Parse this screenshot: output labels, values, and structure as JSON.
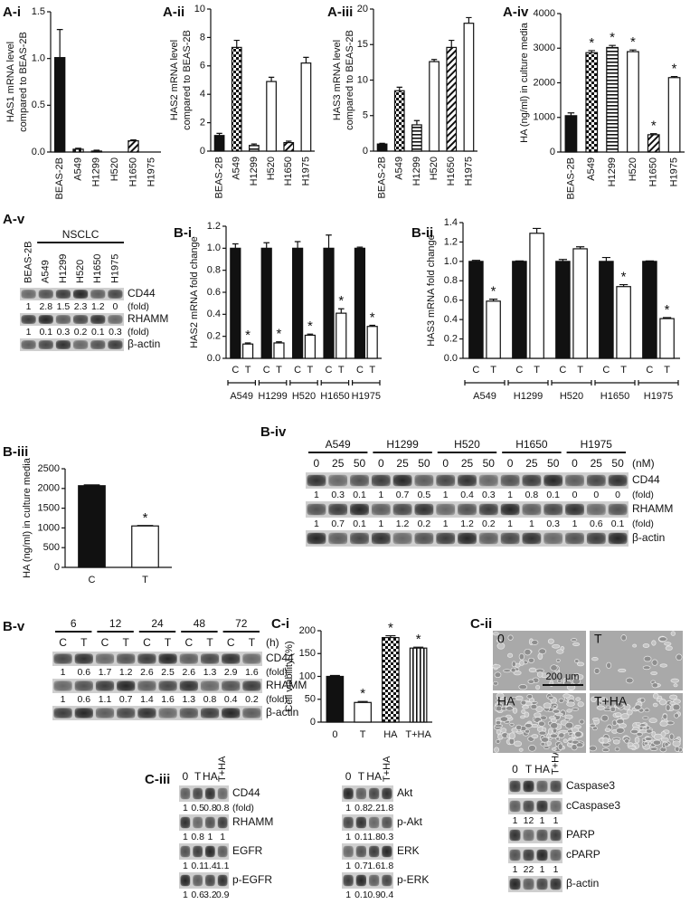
{
  "chart_data": [
    {
      "type": "bar",
      "panel": "A-i",
      "y_label": [
        "HAS1 mRNA level",
        "compared to BEAS-2B"
      ],
      "categories": [
        "BEAS-2B",
        "A549",
        "H1299",
        "H520",
        "H1650",
        "H1975"
      ],
      "values": [
        1.01,
        0.03,
        0.01,
        0,
        0.12,
        0
      ],
      "errors": [
        0.3,
        0.01,
        0.01,
        0,
        0.01,
        0
      ],
      "fills": [
        "black",
        "checker",
        "hstripe",
        "white",
        "diag",
        "white"
      ],
      "ylim": [
        0,
        1.5
      ],
      "yticks": [
        {
          "value": 0,
          "label": "0.0"
        },
        {
          "value": 0.5,
          "label": "0.5"
        },
        {
          "value": 1,
          "label": "1.0"
        },
        {
          "value": 1.5,
          "label": "1.5"
        }
      ]
    },
    {
      "type": "bar",
      "panel": "A-ii",
      "y_label": [
        "HAS2 mRNA level",
        "compared to BEAS-2B"
      ],
      "categories": [
        "BEAS-2B",
        "A549",
        "H1299",
        "H520",
        "H1650",
        "H1975"
      ],
      "values": [
        1.1,
        7.3,
        0.4,
        4.9,
        0.6,
        6.2
      ],
      "errors": [
        0.15,
        0.5,
        0.1,
        0.3,
        0.1,
        0.4
      ],
      "fills": [
        "black",
        "checker",
        "hstripe",
        "white",
        "diag",
        "white"
      ],
      "ylim": [
        0,
        10
      ],
      "yticks": [
        0,
        2,
        4,
        6,
        8,
        10
      ]
    },
    {
      "type": "bar",
      "panel": "A-iii",
      "y_label": [
        "HAS3 mRNA level",
        "compared to BEAS-2B"
      ],
      "categories": [
        "BEAS-2B",
        "A549",
        "H1299",
        "H520",
        "H1650",
        "H1975"
      ],
      "values": [
        1,
        8.5,
        3.7,
        12.6,
        14.6,
        18
      ],
      "errors": [
        0.1,
        0.5,
        0.6,
        0.3,
        1,
        0.8
      ],
      "fills": [
        "black",
        "checker",
        "hstripe",
        "white",
        "diag",
        "white"
      ],
      "ylim": [
        0,
        20
      ],
      "yticks": [
        0,
        5,
        10,
        15,
        20
      ]
    },
    {
      "type": "bar",
      "panel": "A-iv",
      "y_label": [
        "HA (ng/ml) in culture media"
      ],
      "categories": [
        "BEAS-2B",
        "A549",
        "H1299",
        "H520",
        "H1650",
        "H1975"
      ],
      "values": [
        1050,
        2870,
        3020,
        2900,
        500,
        2150
      ],
      "errors": [
        80,
        60,
        60,
        50,
        30,
        30
      ],
      "significance": [
        null,
        "*",
        "*",
        "*",
        "*",
        "*"
      ],
      "fills": [
        "black",
        "checker",
        "hstripe",
        "white",
        "diag",
        "white"
      ],
      "ylim": [
        0,
        4000
      ],
      "yticks": [
        0,
        1000,
        2000,
        3000,
        4000
      ]
    },
    {
      "type": "grouped_bar",
      "panel": "B-i",
      "y_label": [
        "HAS2 mRNA fold change"
      ],
      "categories": [
        "A549",
        "H1299",
        "H520",
        "H1650",
        "H1975"
      ],
      "series": [
        {
          "name": "C",
          "fill": "black",
          "values": [
            1.0,
            1.0,
            1.0,
            1.0,
            1.0
          ],
          "errors": [
            0.04,
            0.05,
            0.06,
            0.12,
            0.01
          ]
        },
        {
          "name": "T",
          "fill": "white",
          "values": [
            0.13,
            0.14,
            0.21,
            0.41,
            0.29
          ],
          "errors": [
            0.01,
            0.01,
            0.01,
            0.04,
            0.01
          ],
          "significance": [
            "*",
            "*",
            "*",
            "*",
            "*"
          ]
        }
      ],
      "ylim": [
        0,
        1.2
      ],
      "yticks": [
        {
          "value": 0,
          "label": "0.0"
        },
        {
          "value": 0.2,
          "label": "0.2"
        },
        {
          "value": 0.4,
          "label": "0.4"
        },
        {
          "value": 0.6,
          "label": "0.6"
        },
        {
          "value": 0.8,
          "label": "0.8"
        },
        {
          "value": 1,
          "label": "1.0"
        },
        {
          "value": 1.2,
          "label": "1.2"
        }
      ]
    },
    {
      "type": "grouped_bar",
      "panel": "B-ii",
      "y_label": [
        "HAS3 mRNA fold change"
      ],
      "categories": [
        "A549",
        "H1299",
        "H520",
        "H1650",
        "H1975"
      ],
      "series": [
        {
          "name": "C",
          "fill": "black",
          "values": [
            1.0,
            1.0,
            1.0,
            1.0,
            1.0
          ],
          "errors": [
            0.01,
            0.005,
            0.02,
            0.04,
            0.005
          ]
        },
        {
          "name": "T",
          "fill": "white",
          "values": [
            0.59,
            1.29,
            1.13,
            0.74,
            0.41
          ],
          "errors": [
            0.02,
            0.05,
            0.02,
            0.02,
            0.01
          ],
          "significance": [
            "*",
            null,
            null,
            "*",
            "*"
          ]
        }
      ],
      "ylim": [
        0,
        1.4
      ],
      "yticks": [
        {
          "value": 0,
          "label": "0.0"
        },
        {
          "value": 0.2,
          "label": "0.2"
        },
        {
          "value": 0.4,
          "label": "0.4"
        },
        {
          "value": 0.6,
          "label": "0.6"
        },
        {
          "value": 0.8,
          "label": "0.8"
        },
        {
          "value": 1,
          "label": "1.0"
        },
        {
          "value": 1.2,
          "label": "1.2"
        },
        {
          "value": 1.4,
          "label": "1.4"
        }
      ]
    },
    {
      "type": "bar",
      "panel": "B-iii",
      "y_label": [
        "HA (ng/ml) in culture media"
      ],
      "categories": [
        "C",
        "T"
      ],
      "values": [
        2070,
        1050
      ],
      "errors": [
        20,
        10
      ],
      "significance": [
        null,
        "*"
      ],
      "fills": [
        "black",
        "white"
      ],
      "ylim": [
        0,
        2500
      ],
      "yticks": [
        0,
        500,
        1000,
        1500,
        2000,
        2500
      ]
    },
    {
      "type": "bar",
      "panel": "C-i",
      "y_label": [
        "Cell viability (%)"
      ],
      "categories": [
        "0",
        "T",
        "HA",
        "T+HA"
      ],
      "values": [
        100,
        43,
        185,
        162
      ],
      "errors": [
        2,
        2,
        4,
        2
      ],
      "significance": [
        null,
        "*",
        "*",
        "*"
      ],
      "fills": [
        "black",
        "white",
        "checker",
        "vstripe"
      ],
      "ylim": [
        0,
        200
      ],
      "yticks": [
        0,
        50,
        100,
        150,
        200
      ]
    }
  ],
  "blots": [
    {
      "panel": "A-v",
      "header": "NSCLC",
      "lanes": [
        "BEAS-2B",
        "A549",
        "H1299",
        "H520",
        "H1650",
        "H1975"
      ],
      "rows": [
        {
          "name": "CD44",
          "fold": [
            1,
            2.8,
            1.5,
            2.3,
            1.2,
            0
          ],
          "unit": "(fold)"
        },
        {
          "name": "RHAMM",
          "fold": [
            1,
            0.1,
            0.3,
            0.2,
            0.1,
            0.3
          ],
          "unit": "(fold)"
        },
        {
          "name": "β-actin"
        }
      ]
    },
    {
      "panel": "B-iv",
      "groups": [
        "A549",
        "H1299",
        "H520",
        "H1650",
        "H1975"
      ],
      "lane_labels": [
        0,
        25,
        50
      ],
      "lane_unit": "(nM)",
      "rows": [
        {
          "name": "CD44",
          "fold": [
            1,
            0.3,
            0.1,
            1,
            0.7,
            0.5,
            1,
            0.4,
            0.3,
            1,
            0.8,
            0.1,
            0,
            0,
            0
          ],
          "unit": "(fold)"
        },
        {
          "name": "RHAMM",
          "fold": [
            1,
            0.7,
            0.1,
            1,
            1.2,
            0.2,
            1,
            1.2,
            0.2,
            1,
            1,
            0.3,
            1,
            0.6,
            0.1
          ],
          "unit": "(fold)"
        },
        {
          "name": "β-actin"
        }
      ]
    },
    {
      "panel": "B-v",
      "groups": [
        6,
        12,
        24,
        48,
        72
      ],
      "lane_labels": [
        "C",
        "T"
      ],
      "lane_unit": "(h)",
      "rows": [
        {
          "name": "CD44",
          "fold": [
            1,
            0.6,
            1.7,
            1.2,
            2.6,
            2.5,
            2.6,
            1.3,
            2.9,
            1.6
          ],
          "unit": "(fold)"
        },
        {
          "name": "RHAMM",
          "fold": [
            1,
            0.6,
            1.1,
            0.7,
            1.4,
            1.6,
            1.3,
            0.8,
            0.4,
            0.2
          ],
          "unit": "(fold)"
        },
        {
          "name": "β-actin"
        }
      ]
    },
    {
      "panel": "C-iii",
      "lanes": [
        "0",
        "T",
        "HA",
        "T+HA"
      ],
      "rows": [
        {
          "name": "CD44",
          "fold": [
            1,
            0.5,
            0.8,
            0.8
          ],
          "unit": "(fold)"
        },
        {
          "name": "RHAMM",
          "fold": [
            1,
            0.8,
            1,
            1
          ]
        },
        {
          "name": "EGFR",
          "fold": [
            1,
            0.1,
            1.4,
            1.1
          ]
        },
        {
          "name": "p-EGFR",
          "fold": [
            1,
            0.6,
            3.2,
            0.9
          ]
        }
      ]
    },
    {
      "lanes": [
        "0",
        "T",
        "HA",
        "T+HA"
      ],
      "rows": [
        {
          "name": "Akt",
          "fold": [
            1,
            0.8,
            2.2,
            1.8
          ]
        },
        {
          "name": "p-Akt",
          "fold": [
            1,
            0.1,
            1.8,
            0.3
          ]
        },
        {
          "name": "ERK",
          "fold": [
            1,
            0.7,
            1.6,
            1.8
          ]
        },
        {
          "name": "p-ERK",
          "fold": [
            1,
            0.1,
            0.9,
            0.4
          ]
        }
      ]
    },
    {
      "lanes": [
        "0",
        "T",
        "HA",
        "T+HA"
      ],
      "rows": [
        {
          "name": "Caspase3"
        },
        {
          "name": "cCaspase3",
          "fold": [
            1,
            12,
            1,
            1
          ]
        },
        {
          "name": "PARP"
        },
        {
          "name": "cPARP",
          "fold": [
            1,
            22,
            1,
            1
          ]
        },
        {
          "name": "β-actin"
        }
      ]
    }
  ],
  "micrographs": {
    "panel": "C-ii",
    "images": [
      "0",
      "T",
      "HA",
      "T+HA"
    ],
    "scale_bar": "200 μm"
  }
}
